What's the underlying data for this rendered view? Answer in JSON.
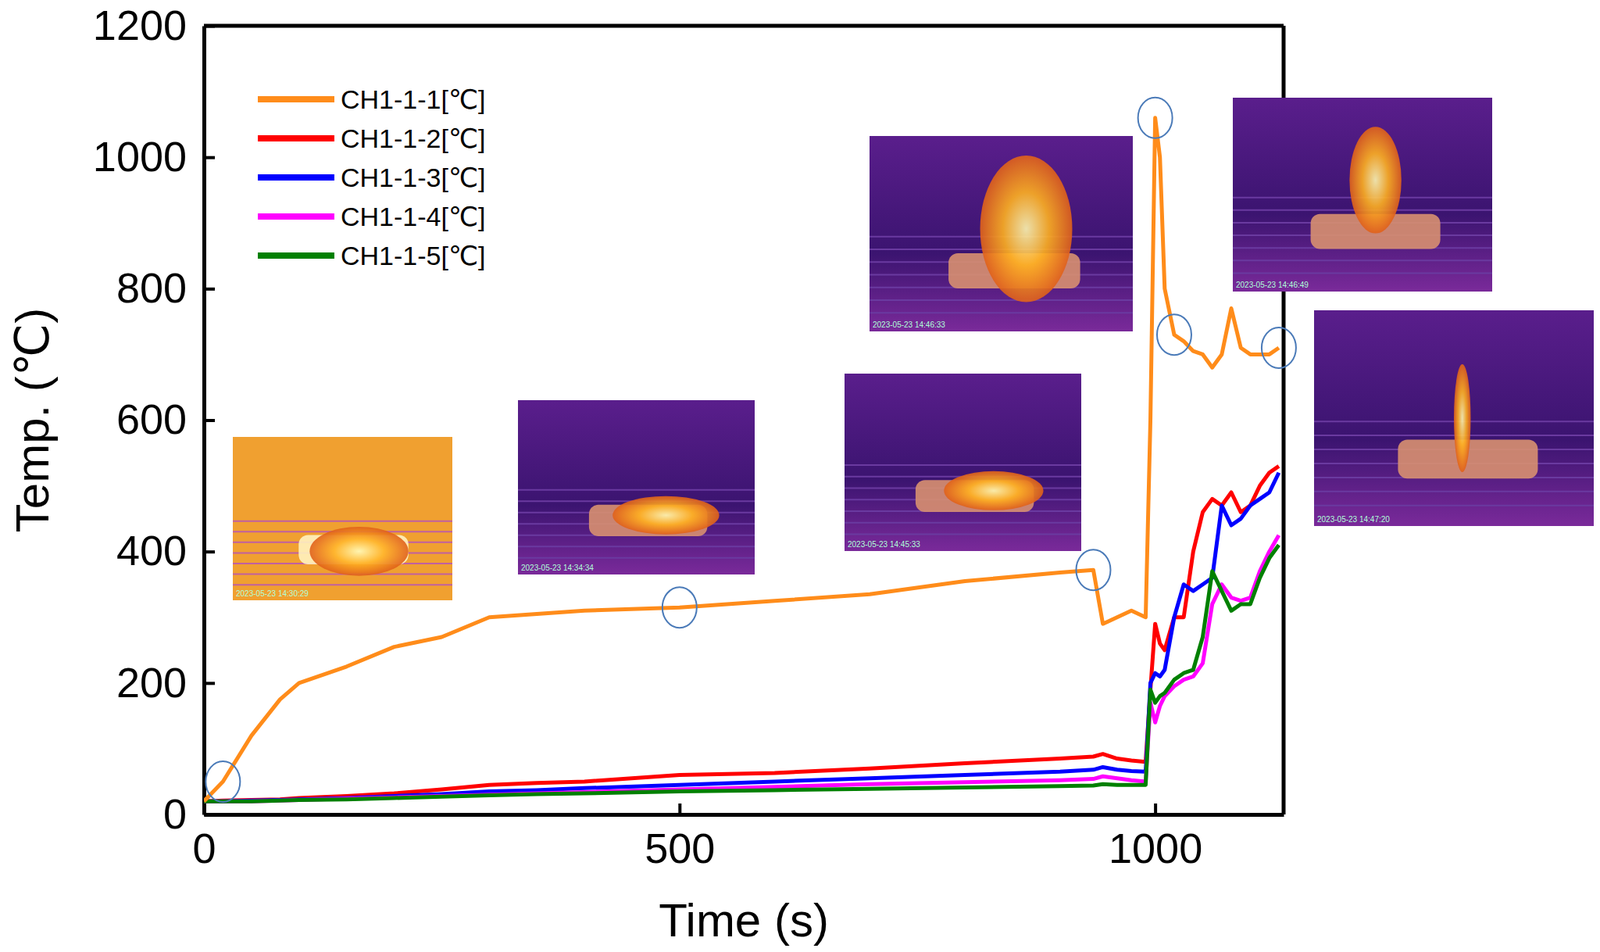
{
  "chart_data": {
    "type": "line",
    "x_label": "Time (s)",
    "y_label": "Temp. (℃)",
    "x": [
      0,
      20,
      50,
      80,
      100,
      150,
      200,
      250,
      300,
      350,
      400,
      500,
      600,
      700,
      800,
      900,
      935,
      945,
      960,
      975,
      990,
      995,
      1000,
      1005,
      1010,
      1020,
      1030,
      1040,
      1050,
      1060,
      1070,
      1080,
      1090,
      1100,
      1110,
      1120,
      1130
    ],
    "series": [
      {
        "name": "CH1-1-1[℃]",
        "color": "#ff8c1a",
        "values": [
          20,
          50,
          120,
          175,
          200,
          225,
          255,
          270,
          300,
          305,
          310,
          315,
          325,
          335,
          355,
          368,
          372,
          290,
          300,
          310,
          300,
          600,
          1060,
          1000,
          800,
          730,
          720,
          705,
          700,
          680,
          700,
          770,
          710,
          700,
          700,
          700,
          710
        ]
      },
      {
        "name": "CH1-1-2[℃]",
        "color": "#ff0000",
        "values": [
          20,
          21,
          22,
          23,
          25,
          28,
          32,
          38,
          45,
          48,
          50,
          60,
          63,
          70,
          78,
          85,
          88,
          92,
          85,
          82,
          80,
          190,
          290,
          260,
          250,
          300,
          300,
          400,
          460,
          480,
          470,
          490,
          460,
          470,
          500,
          520,
          530
        ]
      },
      {
        "name": "CH1-1-3[℃]",
        "color": "#0000ff",
        "values": [
          20,
          20,
          21,
          22,
          23,
          25,
          28,
          31,
          35,
          37,
          40,
          45,
          50,
          55,
          60,
          65,
          68,
          72,
          68,
          66,
          65,
          200,
          215,
          210,
          220,
          300,
          350,
          340,
          350,
          360,
          470,
          440,
          450,
          470,
          480,
          490,
          520
        ]
      },
      {
        "name": "CH1-1-4[℃]",
        "color": "#ff00ff",
        "values": [
          20,
          20,
          20,
          21,
          22,
          24,
          26,
          28,
          30,
          32,
          34,
          38,
          42,
          46,
          49,
          52,
          54,
          58,
          55,
          52,
          50,
          170,
          140,
          165,
          180,
          195,
          205,
          210,
          230,
          320,
          350,
          330,
          325,
          330,
          370,
          400,
          425
        ]
      },
      {
        "name": "CH1-1-5[℃]",
        "color": "#008000",
        "values": [
          20,
          20,
          20,
          21,
          22,
          23,
          25,
          27,
          29,
          31,
          32,
          35,
          37,
          39,
          41,
          43,
          44,
          46,
          45,
          45,
          45,
          190,
          170,
          180,
          185,
          205,
          215,
          220,
          270,
          370,
          340,
          310,
          320,
          320,
          360,
          390,
          410
        ]
      }
    ],
    "xlim": [
      0,
      1135
    ],
    "ylim": [
      0,
      1200
    ],
    "xticks": [
      0,
      500,
      1000
    ],
    "yticks": [
      0,
      200,
      400,
      600,
      800,
      1000,
      1200
    ],
    "grid": false,
    "legend": "upper left",
    "annotations": [
      "2023-05-23 14:30:29",
      "2023-05-23 14:34:34",
      "2023-05-23 14:45:33",
      "2023-05-23 14:46:33",
      "2023-05-23 14:46:49",
      "2023-05-23 14:47:20"
    ]
  }
}
